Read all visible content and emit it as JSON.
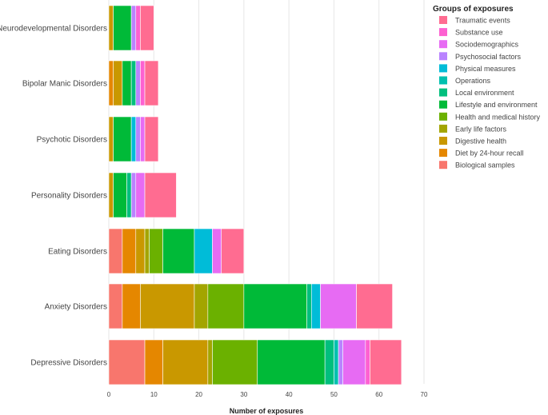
{
  "chart_data": {
    "type": "bar",
    "orientation": "horizontal",
    "stacked": true,
    "title": "",
    "xlabel": "Number of exposures",
    "ylabel": "",
    "xlim": [
      0,
      70
    ],
    "xticks": [
      0,
      10,
      20,
      30,
      40,
      50,
      60,
      70
    ],
    "grid": true,
    "legend_title": "Groups of exposures",
    "legend_position": "right",
    "categories": [
      "Neurodevelopmental Disorders",
      "Bipolar Manic Disorders",
      "Psychotic Disorders",
      "Personality Disorders",
      "Eating Disorders",
      "Anxiety Disorders",
      "Depressive Disorders"
    ],
    "series": [
      {
        "name": "Biological samples",
        "color": "#F8766D",
        "values": [
          0,
          0,
          0,
          0,
          3,
          3,
          8
        ]
      },
      {
        "name": "Diet by 24-hour recall",
        "color": "#E58700",
        "values": [
          0,
          1,
          0,
          0,
          3,
          4,
          4
        ]
      },
      {
        "name": "Digestive health",
        "color": "#C99800",
        "values": [
          1,
          2,
          1,
          1,
          2,
          12,
          10
        ]
      },
      {
        "name": "Early life factors",
        "color": "#A3A500",
        "values": [
          0,
          0,
          0,
          0,
          1,
          3,
          1
        ]
      },
      {
        "name": "Health and medical history",
        "color": "#6BB100",
        "values": [
          0,
          0,
          0,
          0,
          3,
          8,
          10
        ]
      },
      {
        "name": "Lifestyle and environment",
        "color": "#00BA38",
        "values": [
          4,
          2,
          4,
          3,
          7,
          14,
          15
        ]
      },
      {
        "name": "Local environment",
        "color": "#00BF7D",
        "values": [
          0,
          1,
          0,
          1,
          0,
          1,
          2
        ]
      },
      {
        "name": "Operations",
        "color": "#00C0AF",
        "values": [
          0,
          0,
          0,
          0,
          0,
          0,
          1
        ]
      },
      {
        "name": "Physical measures",
        "color": "#00BCD8",
        "values": [
          0,
          0,
          1,
          0,
          4,
          2,
          0
        ]
      },
      {
        "name": "Psychosocial factors",
        "color": "#B983FF",
        "values": [
          1,
          1,
          1,
          1,
          0,
          0,
          1
        ]
      },
      {
        "name": "Sociodemographics",
        "color": "#E76BF3",
        "values": [
          0,
          0,
          1,
          2,
          2,
          8,
          5
        ]
      },
      {
        "name": "Substance use",
        "color": "#FD61D1",
        "values": [
          1,
          1,
          0,
          0,
          0,
          0,
          1
        ]
      },
      {
        "name": "Traumatic events",
        "color": "#FF6C91",
        "values": [
          3,
          3,
          3,
          7,
          5,
          8,
          7
        ]
      }
    ]
  }
}
